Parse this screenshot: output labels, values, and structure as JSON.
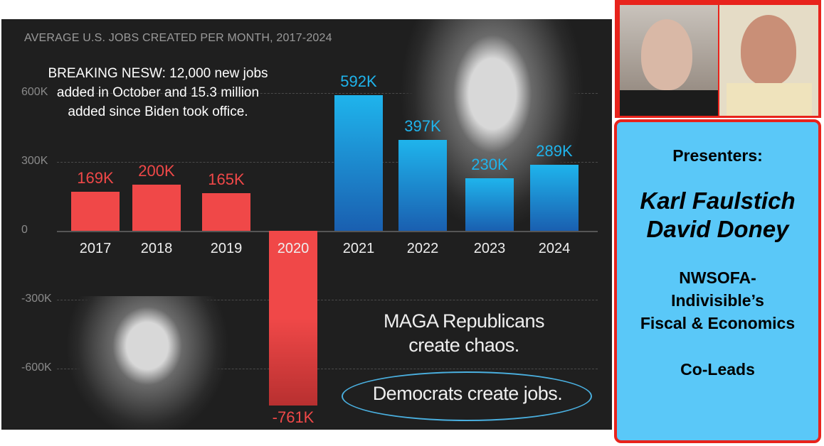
{
  "chart_data": {
    "type": "bar",
    "title": "AVERAGE U.S. JOBS CREATED PER MONTH, 2017-2024",
    "categories": [
      "2017",
      "2018",
      "2019",
      "2020",
      "2021",
      "2022",
      "2023",
      "2024"
    ],
    "values": [
      169000,
      200000,
      165000,
      -761000,
      592000,
      397000,
      230000,
      289000
    ],
    "value_labels": [
      "169K",
      "200K",
      "165K",
      "-761K",
      "592K",
      "397K",
      "230K",
      "289K"
    ],
    "bar_colors": [
      "#f04848",
      "#f04848",
      "#f04848",
      "#f04848",
      "#1fb4ec",
      "#1fb4ec",
      "#1fb4ec",
      "#1fb4ec"
    ],
    "yticks": [
      600000,
      300000,
      0,
      -300000,
      -600000
    ],
    "ytick_labels": [
      "600K",
      "300K",
      "0",
      "-300K",
      "-600K"
    ],
    "ylim": [
      -900000,
      900000
    ],
    "grid": true,
    "annotation_breaking": "BREAKING NESW: 12,000 new jobs added in October and 15.3 million added since Biden took office.",
    "annotation_maga": [
      "MAGA Republicans",
      "create chaos."
    ],
    "annotation_dems": "Democrats create jobs."
  },
  "panel": {
    "heading": "Presenters:",
    "names": [
      "Karl Faulstich",
      "David Doney"
    ],
    "org": [
      "NWSOFA-",
      "Indivisible’s",
      "Fiscal & Economics"
    ],
    "role": "Co-Leads"
  },
  "colors": {
    "border": "#e8231c",
    "panel": "#5ac8f8",
    "republican": "#f04848",
    "democrat": "#1fb4ec"
  }
}
